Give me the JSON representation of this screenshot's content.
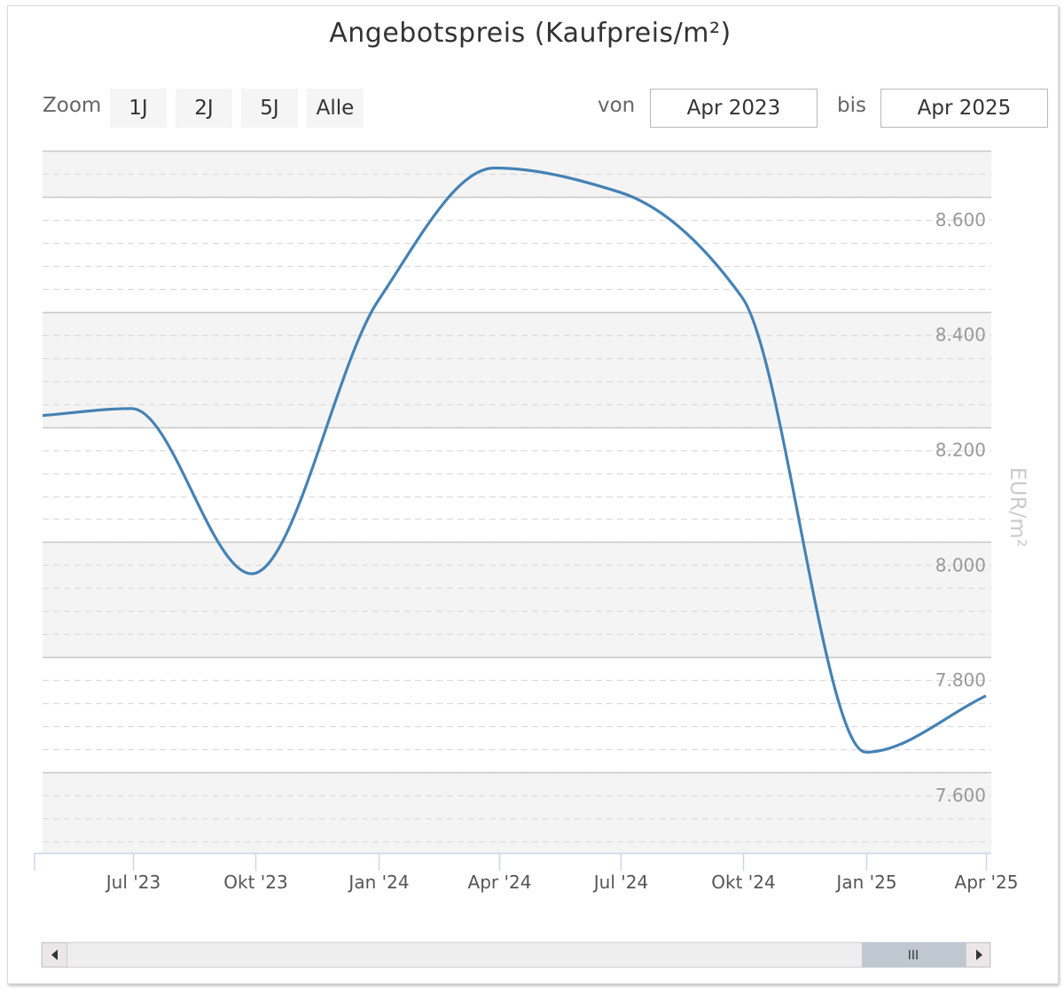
{
  "chart_data": {
    "type": "line",
    "title": "Angebotspreis (Kaufpreis/m²)",
    "ylabel": "EUR/m²",
    "xlabel": "",
    "ylim": [
      7500,
      8720
    ],
    "y_ticks": [
      7600,
      7800,
      8000,
      8200,
      8400,
      8600
    ],
    "y_tick_labels": [
      "7.600",
      "7.800",
      "8.000",
      "8.200",
      "8.400",
      "8.600"
    ],
    "x_ticks": [
      "2023-07-01",
      "2023-10-01",
      "2024-01-01",
      "2024-04-01",
      "2024-07-01",
      "2024-10-01",
      "2025-01-01",
      "2025-04-01"
    ],
    "x_tick_labels": [
      "Jul '23",
      "Okt '23",
      "Jan '24",
      "Apr '24",
      "Jul '24",
      "Okt '24",
      "Jan '25",
      "Apr '25"
    ],
    "xlim": [
      "2023-04-24",
      "2025-04-01"
    ],
    "grid": true,
    "series": [
      {
        "color": "#4682b4",
        "x": [
          "2023-04-24",
          "2023-06-30",
          "2023-09-28",
          "2024-01-01",
          "2024-03-28",
          "2024-06-30",
          "2024-09-30",
          "2025-01-01",
          "2025-04-01"
        ],
        "values": [
          8260,
          8272,
          7985,
          8460,
          8690,
          8648,
          8465,
          7675,
          7773
        ]
      }
    ]
  },
  "controls": {
    "zoom_label": "Zoom",
    "zoom_buttons": [
      "1J",
      "2J",
      "5J",
      "Alle"
    ],
    "from_label": "von",
    "from_value": "Apr 2023",
    "to_label": "bis",
    "to_value": "Apr 2025"
  },
  "navigator": {
    "grip_label": "III"
  }
}
